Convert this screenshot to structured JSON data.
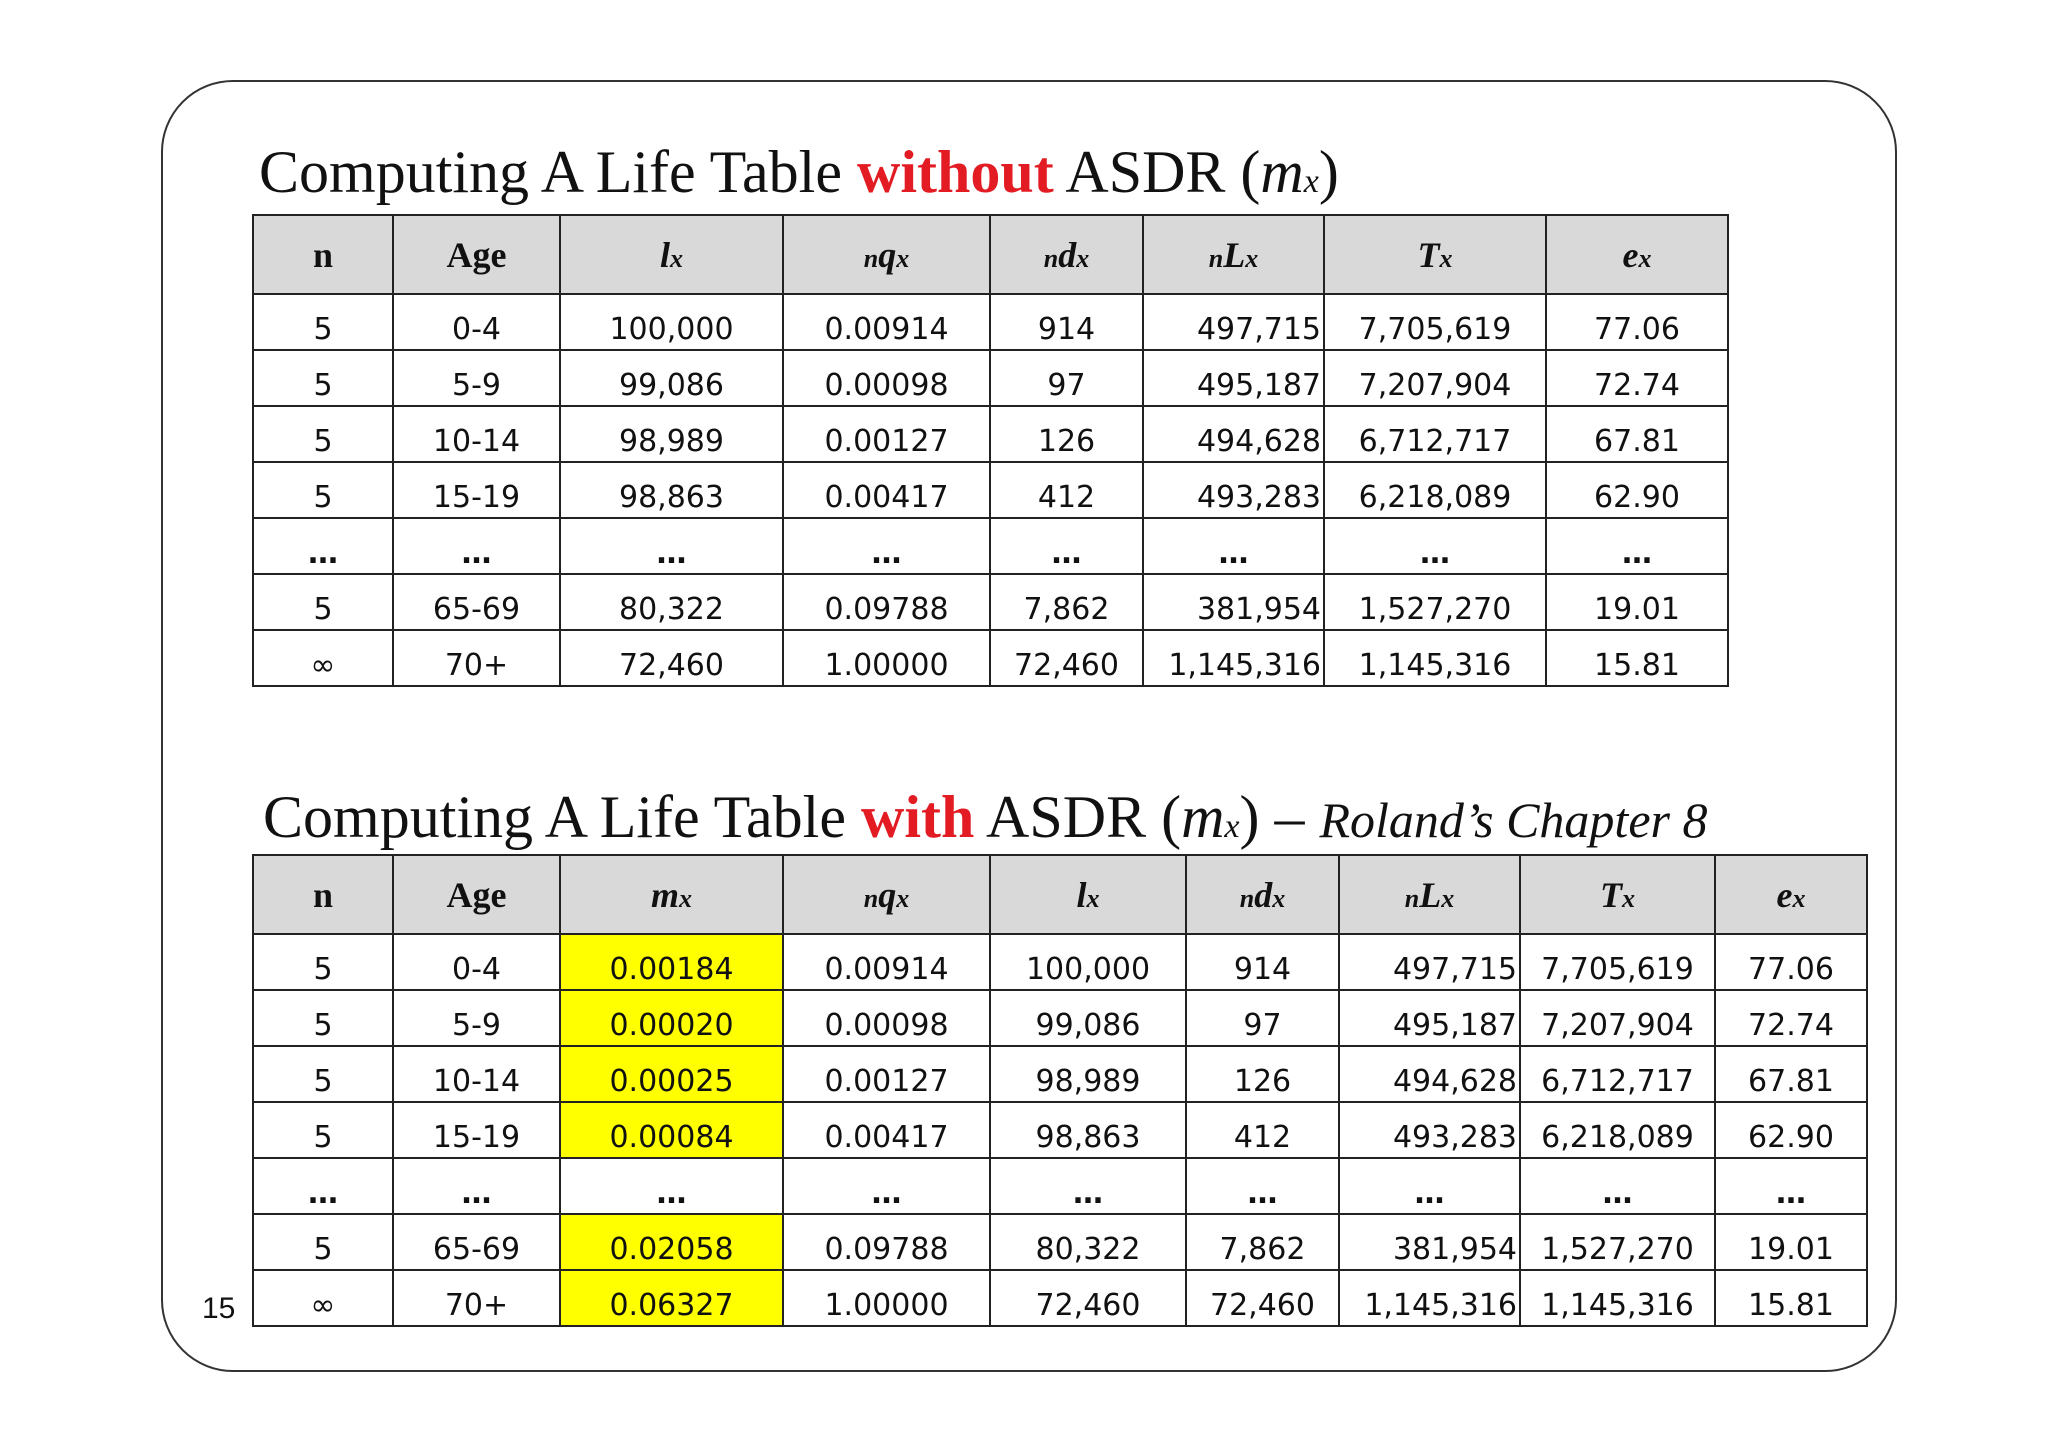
{
  "slide": {
    "number": "15",
    "title1": {
      "part1": "Computing A Life Table ",
      "highlight": "without",
      "part2": " ASDR (",
      "m": "m",
      "x": "x",
      "close": ")"
    },
    "title2": {
      "part1": "Computing A Life Table ",
      "highlight": "with",
      "part2": " ASDR (",
      "m": "m",
      "x": "x",
      "close": ")",
      "dash": " – ",
      "chapter": "Roland’s Chapter 8"
    }
  },
  "colors": {
    "highlight_text": "#e31b23",
    "mx_cell": "#ffff00",
    "header_bg": "#d9d9d9"
  },
  "table1": {
    "headers": {
      "n": "n",
      "age": "Age",
      "lx": {
        "main": "l",
        "sub": "x"
      },
      "nqx": {
        "pre": "n",
        "main": "q",
        "sub": "x"
      },
      "ndx": {
        "pre": "n",
        "main": "d",
        "sub": "x"
      },
      "nLx": {
        "pre": "n",
        "main": "L",
        "sub": "x"
      },
      "Tx": {
        "main": "T",
        "sub": "x"
      },
      "ex": {
        "main": "e",
        "sub": "x"
      }
    },
    "rows": [
      [
        "5",
        "0-4",
        "100,000",
        "0.00914",
        "914",
        "497,715",
        "7,705,619",
        "77.06"
      ],
      [
        "5",
        "5-9",
        "99,086",
        "0.00098",
        "97",
        "495,187",
        "7,207,904",
        "72.74"
      ],
      [
        "5",
        "10-14",
        "98,989",
        "0.00127",
        "126",
        "494,628",
        "6,712,717",
        "67.81"
      ],
      [
        "5",
        "15-19",
        "98,863",
        "0.00417",
        "412",
        "493,283",
        "6,218,089",
        "62.90"
      ],
      [
        "…",
        "…",
        "…",
        "…",
        "…",
        "…",
        "…",
        "…"
      ],
      [
        "5",
        "65-69",
        "80,322",
        "0.09788",
        "7,862",
        "381,954",
        "1,527,270",
        "19.01"
      ],
      [
        "∞",
        "70+",
        "72,460",
        "1.00000",
        "72,460",
        "1,145,316",
        "1,145,316",
        "15.81"
      ]
    ]
  },
  "table2": {
    "headers": {
      "n": "n",
      "age": "Age",
      "mx": {
        "main": "m",
        "sub": "x"
      },
      "nqx": {
        "pre": "n",
        "main": "q",
        "sub": "x"
      },
      "lx": {
        "main": "l",
        "sub": "x"
      },
      "ndx": {
        "pre": "n",
        "main": "d",
        "sub": "x"
      },
      "nLx": {
        "pre": "n",
        "main": "L",
        "sub": "x"
      },
      "Tx": {
        "main": "T",
        "sub": "x"
      },
      "ex": {
        "main": "e",
        "sub": "x"
      }
    },
    "rows": [
      [
        "5",
        "0-4",
        "0.00184",
        "0.00914",
        "100,000",
        "914",
        "497,715",
        "7,705,619",
        "77.06"
      ],
      [
        "5",
        "5-9",
        "0.00020",
        "0.00098",
        "99,086",
        "97",
        "495,187",
        "7,207,904",
        "72.74"
      ],
      [
        "5",
        "10-14",
        "0.00025",
        "0.00127",
        "98,989",
        "126",
        "494,628",
        "6,712,717",
        "67.81"
      ],
      [
        "5",
        "15-19",
        "0.00084",
        "0.00417",
        "98,863",
        "412",
        "493,283",
        "6,218,089",
        "62.90"
      ],
      [
        "…",
        "…",
        "…",
        "…",
        "…",
        "…",
        "…",
        "…",
        "…"
      ],
      [
        "5",
        "65-69",
        "0.02058",
        "0.09788",
        "80,322",
        "7,862",
        "381,954",
        "1,527,270",
        "19.01"
      ],
      [
        "∞",
        "70+",
        "0.06327",
        "1.00000",
        "72,460",
        "72,460",
        "1,145,316",
        "1,145,316",
        "15.81"
      ]
    ]
  }
}
